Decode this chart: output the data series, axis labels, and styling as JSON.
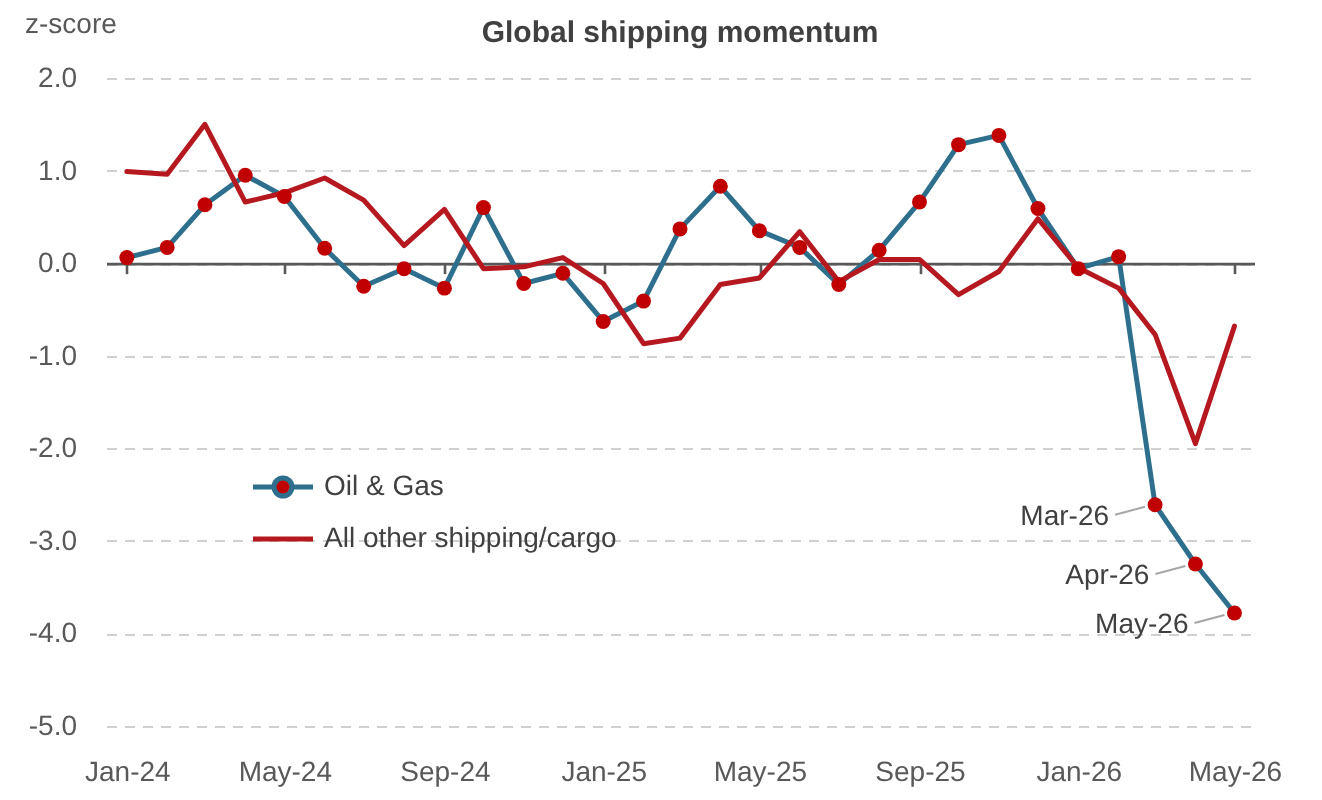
{
  "chart_data": {
    "type": "line",
    "title": "Global shipping momentum",
    "ylabel": "z-score",
    "x": [
      "2024-01",
      "2024-02",
      "2024-03",
      "2024-04",
      "2024-05",
      "2024-06",
      "2024-07",
      "2024-08",
      "2024-09",
      "2024-10",
      "2024-11",
      "2024-12",
      "2025-01",
      "2025-02",
      "2025-03",
      "2025-04",
      "2025-05",
      "2025-06",
      "2025-07",
      "2025-08",
      "2025-09",
      "2025-10",
      "2025-11",
      "2025-12",
      "2026-01",
      "2026-02",
      "2026-03",
      "2026-04",
      "2026-05"
    ],
    "series": [
      {
        "name": "Oil & Gas",
        "color": "#2e6f8e",
        "marker": "circle",
        "colors": [
          "#c00000",
          "#c00000",
          "#c00000",
          "#c00000",
          "#c00000",
          "#c00000",
          "#c00000",
          "#c00000",
          "#c00000",
          "#c00000",
          "#c00000",
          "#c00000",
          "#c00000",
          "#c00000",
          "#c00000",
          "#c00000",
          "#c00000",
          "#c00000",
          "#c00000",
          "#c00000",
          "#c00000",
          "#c00000",
          "#c00000",
          "#c00000",
          "#c00000",
          "#c00000",
          "#c00000",
          "#c00000",
          "#c00000"
        ],
        "values": [
          0.06,
          0.17,
          0.63,
          0.95,
          0.72,
          0.16,
          -0.25,
          -0.06,
          -0.27,
          0.6,
          -0.22,
          -0.11,
          -0.63,
          -0.41,
          0.37,
          0.83,
          0.35,
          0.17,
          -0.23,
          0.14,
          0.66,
          1.28,
          1.38,
          0.59,
          -0.06,
          0.07,
          -2.61,
          -3.25,
          -3.78
        ]
      },
      {
        "name": "All other shipping/cargo",
        "color": "#b5191f",
        "marker": "none",
        "values": [
          0.99,
          0.96,
          1.5,
          0.66,
          0.76,
          0.92,
          0.68,
          0.19,
          0.58,
          -0.06,
          -0.04,
          0.06,
          -0.22,
          -0.87,
          -0.81,
          -0.23,
          -0.16,
          0.34,
          -0.2,
          0.04,
          0.04,
          -0.34,
          -0.09,
          0.48,
          -0.05,
          -0.27,
          -0.77,
          -1.95,
          -0.68
        ]
      }
    ],
    "xlim": [
      "2023-12-16",
      "2026-05-16"
    ],
    "xticks": [
      {
        "value": "2024-01",
        "label": "Jan-24"
      },
      {
        "value": "2024-05",
        "label": "May-24"
      },
      {
        "value": "2024-09",
        "label": "Sep-24"
      },
      {
        "value": "2025-01",
        "label": "Jan-25"
      },
      {
        "value": "2025-05",
        "label": "May-25"
      },
      {
        "value": "2025-09",
        "label": "Sep-25"
      },
      {
        "value": "2026-01",
        "label": "Jan-26"
      },
      {
        "value": "2026-05",
        "label": "May-26"
      }
    ],
    "ylim": [
      -5,
      2
    ],
    "yticks": [
      {
        "value": -5,
        "label": "-5.0"
      },
      {
        "value": -4,
        "label": "-4.0"
      },
      {
        "value": -3,
        "label": "-3.0"
      },
      {
        "value": -2,
        "label": "-2.0"
      },
      {
        "value": -1,
        "label": "-1.0"
      },
      {
        "value": 0,
        "label": "0.0"
      },
      {
        "value": 1,
        "label": "1.0"
      },
      {
        "value": 2,
        "label": "2.0"
      }
    ],
    "grid": "y",
    "legend": "bottom left",
    "annotations": [
      {
        "text": "Mar-26",
        "x": "2026-03",
        "y": -2.61
      },
      {
        "text": "Apr-26",
        "x": "2026-04",
        "y": -3.25
      },
      {
        "text": "May-26",
        "x": "2026-05",
        "y": -3.78
      }
    ]
  }
}
